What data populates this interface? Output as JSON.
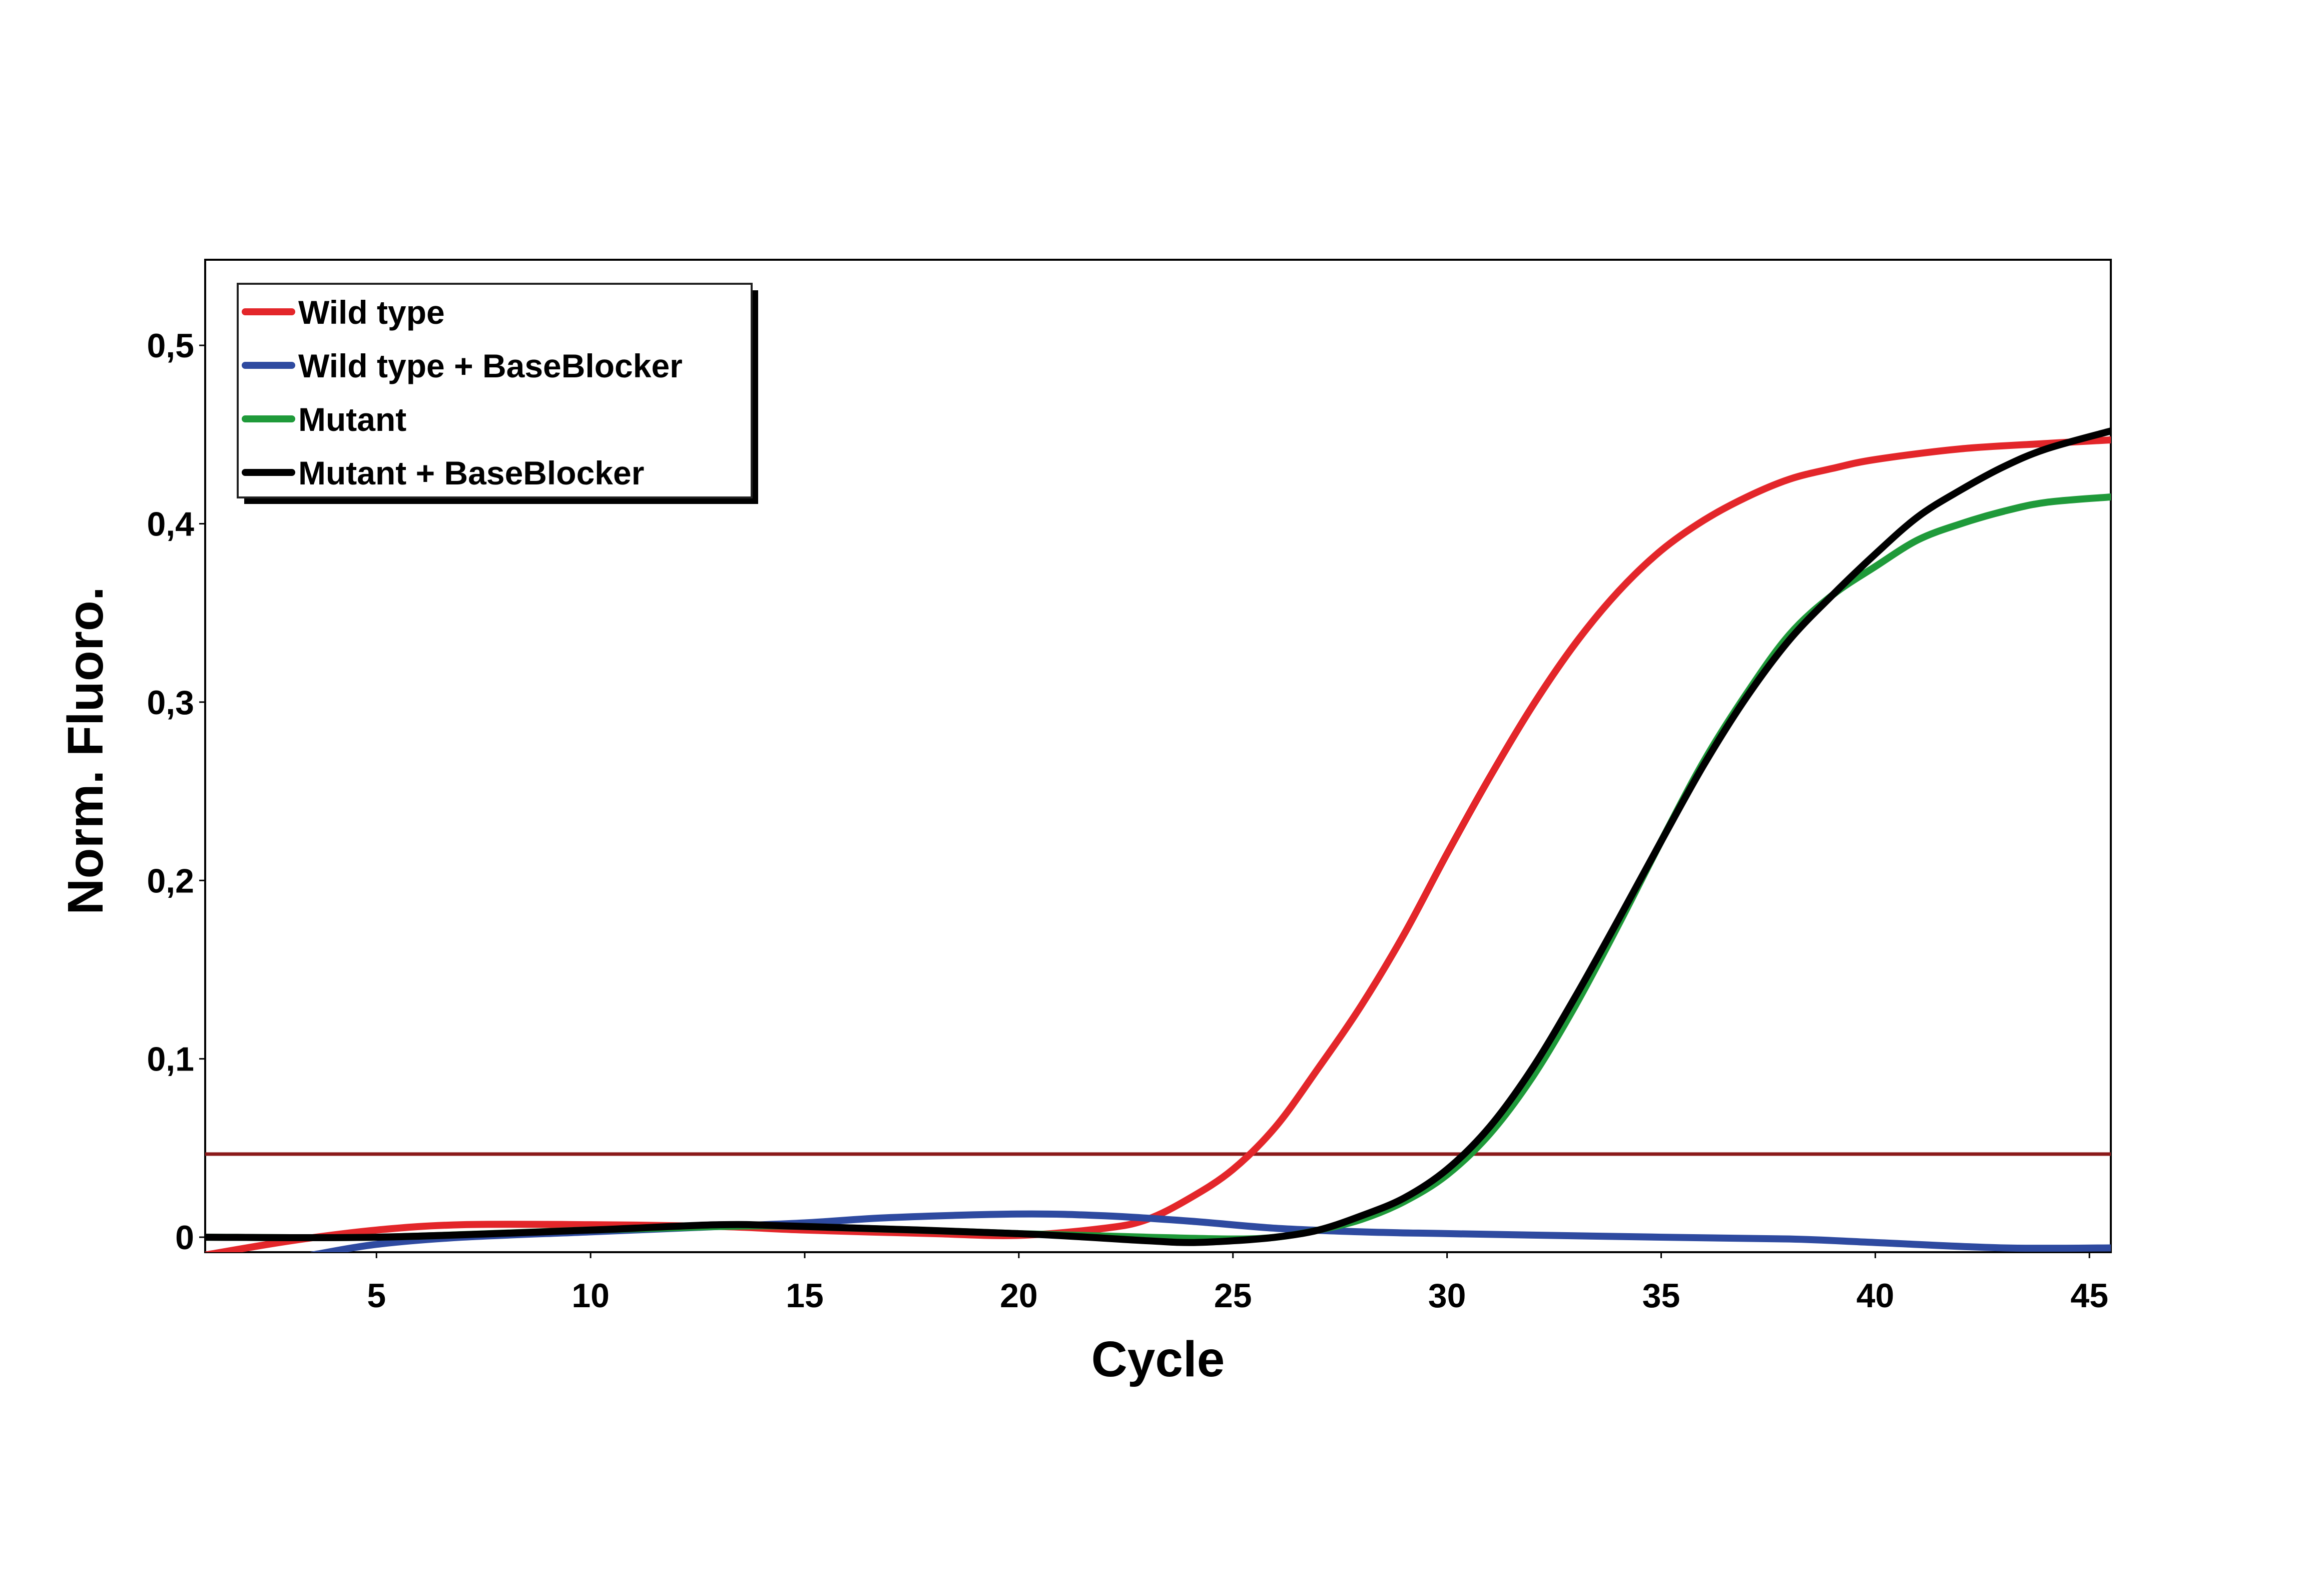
{
  "chart_data": {
    "type": "line",
    "title": "",
    "xlabel": "Cycle",
    "ylabel": "Norm. Fluoro.",
    "xlim": [
      1,
      45.5
    ],
    "ylim": [
      -0.0084,
      0.548
    ],
    "xticks": [
      5,
      10,
      15,
      20,
      25,
      30,
      35,
      40,
      45
    ],
    "xtick_labels": [
      "5",
      "10",
      "15",
      "20",
      "25",
      "30",
      "35",
      "40",
      "45"
    ],
    "yticks": [
      0,
      0.1,
      0.2,
      0.3,
      0.4,
      0.5
    ],
    "ytick_labels": [
      "0",
      "0,1",
      "0,2",
      "0,3",
      "0,4",
      "0,5"
    ],
    "grid": false,
    "legend_position": "top-left",
    "threshold": {
      "value": 0.0466,
      "color": "#8b1a1a"
    },
    "series": [
      {
        "name": "Wild type",
        "color": "#e3262a",
        "x": [
          1,
          3,
          5,
          7,
          10,
          13,
          15,
          18,
          20,
          22,
          23,
          24,
          25,
          26,
          27,
          28,
          29,
          30,
          31,
          32,
          33,
          34,
          35,
          36,
          37,
          38,
          39,
          40,
          42,
          44,
          45.5
        ],
        "y": [
          -0.01,
          -0.002,
          0.004,
          0.007,
          0.007,
          0.006,
          0.004,
          0.002,
          0.001,
          0.005,
          0.01,
          0.022,
          0.038,
          0.062,
          0.095,
          0.13,
          0.17,
          0.215,
          0.258,
          0.298,
          0.333,
          0.362,
          0.385,
          0.402,
          0.415,
          0.425,
          0.431,
          0.436,
          0.442,
          0.445,
          0.447
        ]
      },
      {
        "name": "Wild type + BaseBlocker",
        "color": "#2e4aa0",
        "x": [
          3.5,
          5,
          7,
          10,
          13,
          15,
          17,
          20,
          22,
          24,
          26,
          28,
          30,
          35,
          38,
          40,
          43,
          45.5
        ],
        "y": [
          -0.01,
          -0.004,
          0,
          0.003,
          0.006,
          0.008,
          0.011,
          0.013,
          0.012,
          0.009,
          0.005,
          0.003,
          0.002,
          0,
          -0.001,
          -0.003,
          -0.006,
          -0.006
        ]
      },
      {
        "name": "Mutant",
        "color": "#1f9a3a",
        "x": [
          1,
          5,
          10,
          13,
          15,
          20,
          23,
          25,
          26,
          27,
          28,
          29,
          30,
          31,
          32,
          33,
          34,
          35,
          36,
          37,
          38,
          39,
          40,
          41,
          42,
          43,
          44,
          45.5
        ],
        "y": [
          0,
          0,
          0.004,
          0.006,
          0.006,
          0.002,
          0,
          -0.001,
          0,
          0.004,
          0.01,
          0.02,
          0.035,
          0.058,
          0.09,
          0.13,
          0.175,
          0.222,
          0.267,
          0.305,
          0.338,
          0.36,
          0.376,
          0.391,
          0.4,
          0.407,
          0.412,
          0.415
        ]
      },
      {
        "name": "Mutant + BaseBlocker",
        "color": "#000000",
        "x": [
          1,
          5,
          10,
          13,
          15,
          20,
          23,
          24,
          25,
          26,
          27,
          28,
          29,
          30,
          31,
          32,
          33,
          34,
          35,
          36,
          37,
          38,
          39,
          40,
          41,
          42,
          43,
          44,
          45.5
        ],
        "y": [
          0,
          0,
          0.004,
          0.007,
          0.006,
          0.002,
          -0.002,
          -0.003,
          -0.002,
          0,
          0.004,
          0.012,
          0.022,
          0.038,
          0.062,
          0.095,
          0.135,
          0.178,
          0.222,
          0.265,
          0.303,
          0.335,
          0.36,
          0.383,
          0.404,
          0.419,
          0.432,
          0.442,
          0.452
        ]
      }
    ]
  }
}
